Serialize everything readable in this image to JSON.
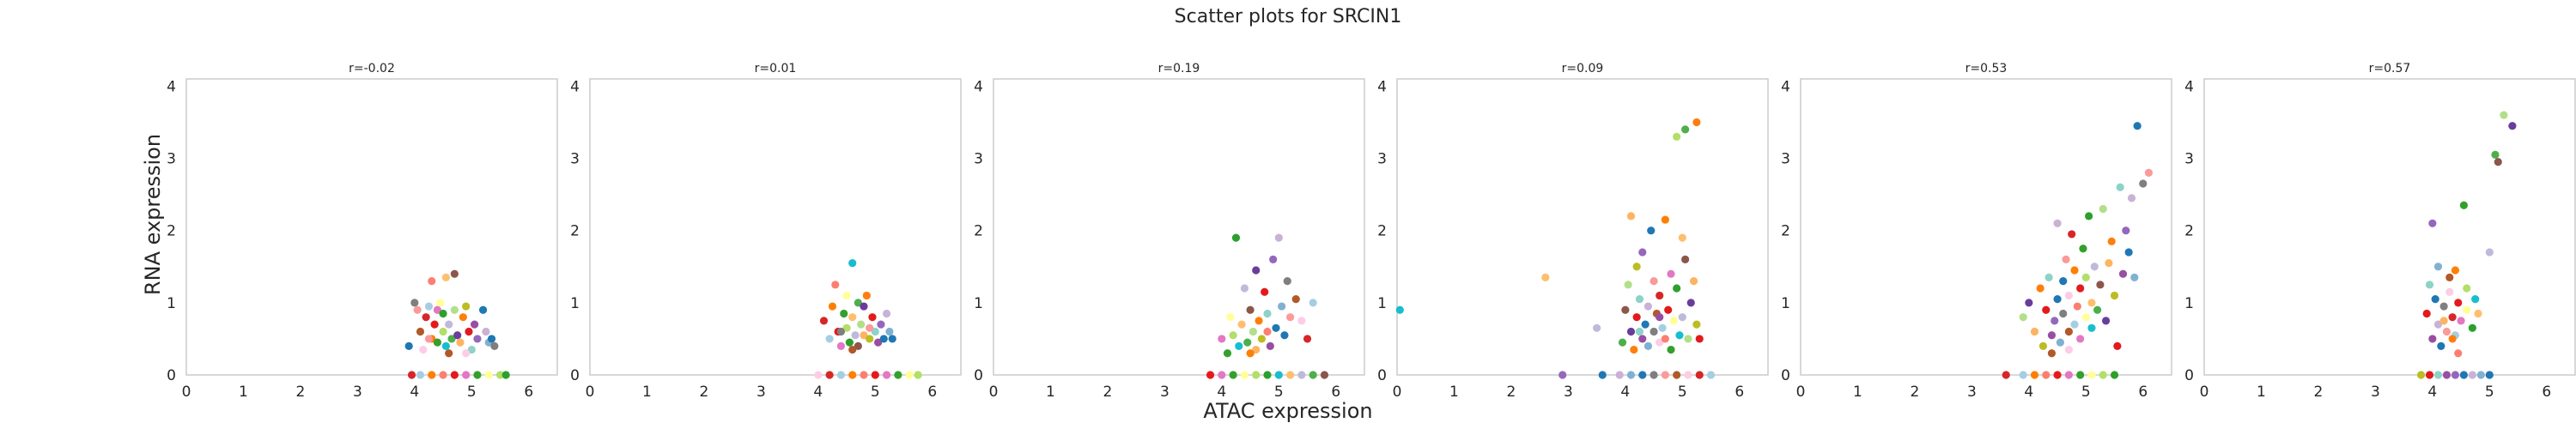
{
  "figure": {
    "title": "Scatter plots for SRCIN1",
    "xlabel": "ATAC expression",
    "ylabel": "RNA expression"
  },
  "palette": [
    "#1f77b4",
    "#ff7f0e",
    "#2ca02c",
    "#d62728",
    "#9467bd",
    "#8c564b",
    "#e377c2",
    "#7f7f7f",
    "#bcbd22",
    "#17becf",
    "#a6cee3",
    "#1f78b4",
    "#b2df8a",
    "#33a02c",
    "#fb9a99",
    "#e31a1c",
    "#fdbf6f",
    "#ff7f00",
    "#cab2d6",
    "#6a3d9a",
    "#ffff99",
    "#b15928",
    "#8dd3c7",
    "#bebada",
    "#fb8072",
    "#80b1d3",
    "#fdb462",
    "#b3de69",
    "#fccde5",
    "#984ea3",
    "#4daf4a",
    "#e41a1c"
  ],
  "chart_data": [
    {
      "type": "scatter",
      "title": "r=-0.02",
      "xlim": [
        0,
        6.5
      ],
      "ylim": [
        0,
        4.1
      ],
      "xticks": [
        0,
        1,
        2,
        3,
        4,
        5,
        6
      ],
      "yticks": [
        0,
        1,
        2,
        3,
        4
      ],
      "grid": false,
      "points": [
        [
          3.9,
          0.4
        ],
        [
          4.0,
          1.0
        ],
        [
          4.05,
          0.9
        ],
        [
          4.1,
          0.6
        ],
        [
          4.15,
          0.35
        ],
        [
          4.2,
          0.8
        ],
        [
          4.25,
          0.95
        ],
        [
          4.3,
          0.5
        ],
        [
          4.3,
          1.3
        ],
        [
          4.35,
          0.7
        ],
        [
          4.4,
          0.9
        ],
        [
          4.4,
          0.45
        ],
        [
          4.45,
          1.0
        ],
        [
          4.5,
          0.6
        ],
        [
          4.5,
          0.85
        ],
        [
          4.55,
          0.4
        ],
        [
          4.55,
          1.35
        ],
        [
          4.6,
          0.7
        ],
        [
          4.65,
          0.5
        ],
        [
          4.7,
          1.4
        ],
        [
          4.7,
          0.9
        ],
        [
          4.75,
          0.55
        ],
        [
          4.8,
          0.45
        ],
        [
          4.85,
          0.8
        ],
        [
          4.9,
          0.95
        ],
        [
          4.95,
          0.6
        ],
        [
          5.0,
          0.35
        ],
        [
          5.05,
          0.7
        ],
        [
          5.1,
          0.5
        ],
        [
          5.2,
          0.9
        ],
        [
          5.25,
          0.6
        ],
        [
          5.3,
          0.45
        ],
        [
          5.35,
          0.5
        ],
        [
          5.4,
          0.4
        ],
        [
          4.25,
          0.5
        ],
        [
          4.6,
          0.3
        ],
        [
          4.9,
          0.3
        ],
        [
          3.95,
          0
        ],
        [
          4.1,
          0
        ],
        [
          4.3,
          0
        ],
        [
          4.5,
          0
        ],
        [
          4.7,
          0
        ],
        [
          4.9,
          0
        ],
        [
          5.1,
          0
        ],
        [
          5.3,
          0
        ],
        [
          5.5,
          0
        ],
        [
          5.6,
          0
        ]
      ]
    },
    {
      "type": "scatter",
      "title": "r=0.01",
      "xlim": [
        0,
        6.5
      ],
      "ylim": [
        0,
        4.1
      ],
      "xticks": [
        0,
        1,
        2,
        3,
        4,
        5,
        6
      ],
      "yticks": [
        0,
        1,
        2,
        3,
        4
      ],
      "grid": false,
      "points": [
        [
          4.1,
          0.75
        ],
        [
          4.2,
          0.5
        ],
        [
          4.25,
          0.95
        ],
        [
          4.3,
          1.25
        ],
        [
          4.35,
          0.6
        ],
        [
          4.4,
          0.4
        ],
        [
          4.45,
          0.85
        ],
        [
          4.5,
          1.1
        ],
        [
          4.5,
          0.65
        ],
        [
          4.55,
          0.45
        ],
        [
          4.6,
          1.55
        ],
        [
          4.6,
          0.8
        ],
        [
          4.65,
          0.55
        ],
        [
          4.7,
          1.0
        ],
        [
          4.7,
          0.4
        ],
        [
          4.75,
          0.7
        ],
        [
          4.8,
          0.95
        ],
        [
          4.8,
          0.55
        ],
        [
          4.85,
          1.1
        ],
        [
          4.9,
          0.5
        ],
        [
          4.95,
          0.8
        ],
        [
          5.0,
          0.6
        ],
        [
          5.05,
          0.45
        ],
        [
          5.1,
          0.7
        ],
        [
          5.15,
          0.5
        ],
        [
          5.2,
          0.85
        ],
        [
          5.25,
          0.6
        ],
        [
          5.3,
          0.5
        ],
        [
          4.4,
          0.6
        ],
        [
          4.9,
          0.65
        ],
        [
          4.6,
          0.35
        ],
        [
          4.0,
          0
        ],
        [
          4.2,
          0
        ],
        [
          4.4,
          0
        ],
        [
          4.6,
          0
        ],
        [
          4.8,
          0
        ],
        [
          5.0,
          0
        ],
        [
          5.2,
          0
        ],
        [
          5.4,
          0
        ],
        [
          5.6,
          0
        ],
        [
          5.75,
          0
        ]
      ]
    },
    {
      "type": "scatter",
      "title": "r=0.19",
      "xlim": [
        0,
        6.5
      ],
      "ylim": [
        0,
        4.1
      ],
      "xticks": [
        0,
        1,
        2,
        3,
        4,
        5,
        6
      ],
      "yticks": [
        0,
        1,
        2,
        3,
        4
      ],
      "grid": false,
      "points": [
        [
          4.0,
          0.5
        ],
        [
          4.1,
          0.3
        ],
        [
          4.15,
          0.8
        ],
        [
          4.2,
          0.55
        ],
        [
          4.25,
          1.9
        ],
        [
          4.3,
          0.4
        ],
        [
          4.35,
          0.7
        ],
        [
          4.4,
          1.2
        ],
        [
          4.45,
          0.45
        ],
        [
          4.5,
          0.9
        ],
        [
          4.55,
          0.6
        ],
        [
          4.6,
          1.45
        ],
        [
          4.6,
          0.35
        ],
        [
          4.65,
          0.75
        ],
        [
          4.7,
          0.5
        ],
        [
          4.75,
          1.15
        ],
        [
          4.8,
          0.85
        ],
        [
          4.85,
          0.4
        ],
        [
          4.9,
          1.6
        ],
        [
          4.95,
          0.65
        ],
        [
          5.0,
          1.9
        ],
        [
          5.05,
          0.95
        ],
        [
          5.1,
          0.55
        ],
        [
          5.15,
          1.3
        ],
        [
          5.2,
          0.8
        ],
        [
          5.3,
          1.05
        ],
        [
          5.4,
          0.75
        ],
        [
          5.5,
          0.5
        ],
        [
          5.6,
          1.0
        ],
        [
          4.5,
          0.3
        ],
        [
          4.8,
          0.6
        ],
        [
          3.8,
          0
        ],
        [
          4.0,
          0
        ],
        [
          4.2,
          0
        ],
        [
          4.4,
          0
        ],
        [
          4.6,
          0
        ],
        [
          4.8,
          0
        ],
        [
          5.0,
          0
        ],
        [
          5.2,
          0
        ],
        [
          5.4,
          0
        ],
        [
          5.6,
          0
        ],
        [
          5.8,
          0
        ]
      ]
    },
    {
      "type": "scatter",
      "title": "r=0.09",
      "xlim": [
        0,
        6.5
      ],
      "ylim": [
        0,
        4.1
      ],
      "xticks": [
        0,
        1,
        2,
        3,
        4,
        5,
        6
      ],
      "yticks": [
        0,
        1,
        2,
        3,
        4
      ],
      "grid": false,
      "points": [
        [
          0.05,
          0.9
        ],
        [
          2.6,
          1.35
        ],
        [
          3.5,
          0.65
        ],
        [
          3.95,
          0.45
        ],
        [
          4.0,
          0.9
        ],
        [
          4.05,
          1.25
        ],
        [
          4.1,
          0.6
        ],
        [
          4.1,
          2.2
        ],
        [
          4.15,
          0.35
        ],
        [
          4.2,
          1.5
        ],
        [
          4.2,
          0.8
        ],
        [
          4.25,
          1.05
        ],
        [
          4.3,
          0.5
        ],
        [
          4.3,
          1.7
        ],
        [
          4.35,
          0.7
        ],
        [
          4.4,
          0.95
        ],
        [
          4.4,
          0.4
        ],
        [
          4.45,
          2.0
        ],
        [
          4.5,
          0.6
        ],
        [
          4.5,
          1.3
        ],
        [
          4.55,
          0.85
        ],
        [
          4.6,
          0.45
        ],
        [
          4.6,
          1.1
        ],
        [
          4.65,
          0.65
        ],
        [
          4.7,
          2.15
        ],
        [
          4.7,
          0.5
        ],
        [
          4.75,
          0.9
        ],
        [
          4.8,
          1.4
        ],
        [
          4.8,
          0.35
        ],
        [
          4.85,
          0.75
        ],
        [
          4.9,
          3.3
        ],
        [
          4.9,
          1.2
        ],
        [
          4.95,
          0.55
        ],
        [
          5.0,
          1.9
        ],
        [
          5.0,
          0.8
        ],
        [
          5.05,
          3.4
        ],
        [
          5.05,
          1.6
        ],
        [
          5.1,
          0.5
        ],
        [
          5.15,
          1.0
        ],
        [
          5.2,
          1.3
        ],
        [
          5.25,
          3.5
        ],
        [
          5.25,
          0.7
        ],
        [
          5.3,
          0.5
        ],
        [
          4.25,
          0.6
        ],
        [
          4.6,
          0.8
        ],
        [
          2.9,
          0
        ],
        [
          3.6,
          0
        ],
        [
          3.9,
          0
        ],
        [
          4.1,
          0
        ],
        [
          4.3,
          0
        ],
        [
          4.5,
          0
        ],
        [
          4.7,
          0
        ],
        [
          4.9,
          0
        ],
        [
          5.1,
          0
        ],
        [
          5.3,
          0
        ],
        [
          5.5,
          0
        ]
      ]
    },
    {
      "type": "scatter",
      "title": "r=0.53",
      "xlim": [
        0,
        6.5
      ],
      "ylim": [
        0,
        4.1
      ],
      "xticks": [
        0,
        1,
        2,
        3,
        4,
        5,
        6
      ],
      "yticks": [
        0,
        1,
        2,
        3,
        4
      ],
      "grid": false,
      "points": [
        [
          3.9,
          0.8
        ],
        [
          4.0,
          1.0
        ],
        [
          4.1,
          0.6
        ],
        [
          4.2,
          1.2
        ],
        [
          4.25,
          0.4
        ],
        [
          4.3,
          0.9
        ],
        [
          4.35,
          1.35
        ],
        [
          4.4,
          0.55
        ],
        [
          4.45,
          0.75
        ],
        [
          4.5,
          1.05
        ],
        [
          4.5,
          2.1
        ],
        [
          4.55,
          0.45
        ],
        [
          4.6,
          1.3
        ],
        [
          4.6,
          0.85
        ],
        [
          4.65,
          1.6
        ],
        [
          4.7,
          0.6
        ],
        [
          4.7,
          1.1
        ],
        [
          4.75,
          1.95
        ],
        [
          4.8,
          0.7
        ],
        [
          4.8,
          1.45
        ],
        [
          4.85,
          0.95
        ],
        [
          4.9,
          1.2
        ],
        [
          4.9,
          0.5
        ],
        [
          4.95,
          1.75
        ],
        [
          5.0,
          0.8
        ],
        [
          5.0,
          1.35
        ],
        [
          5.05,
          2.2
        ],
        [
          5.1,
          0.65
        ],
        [
          5.1,
          1.0
        ],
        [
          5.15,
          1.5
        ],
        [
          5.2,
          0.9
        ],
        [
          5.25,
          1.25
        ],
        [
          5.3,
          2.3
        ],
        [
          5.35,
          0.75
        ],
        [
          5.4,
          1.55
        ],
        [
          5.45,
          1.85
        ],
        [
          5.5,
          1.1
        ],
        [
          5.55,
          0.4
        ],
        [
          5.6,
          2.6
        ],
        [
          5.65,
          1.4
        ],
        [
          5.7,
          2.0
        ],
        [
          5.75,
          1.7
        ],
        [
          5.8,
          2.45
        ],
        [
          5.85,
          1.35
        ],
        [
          5.9,
          3.45
        ],
        [
          6.0,
          2.65
        ],
        [
          6.1,
          2.8
        ],
        [
          4.4,
          0.3
        ],
        [
          4.7,
          0.35
        ],
        [
          3.6,
          0
        ],
        [
          3.9,
          0
        ],
        [
          4.1,
          0
        ],
        [
          4.3,
          0
        ],
        [
          4.5,
          0
        ],
        [
          4.7,
          0
        ],
        [
          4.9,
          0
        ],
        [
          5.1,
          0
        ],
        [
          5.3,
          0
        ],
        [
          5.5,
          0
        ]
      ]
    },
    {
      "type": "scatter",
      "title": "r=0.57",
      "xlim": [
        0,
        6.5
      ],
      "ylim": [
        0,
        4.1
      ],
      "xticks": [
        0,
        1,
        2,
        3,
        4,
        5,
        6
      ],
      "yticks": [
        0,
        1,
        2,
        3,
        4
      ],
      "grid": false,
      "points": [
        [
          3.9,
          0.85
        ],
        [
          3.95,
          1.25
        ],
        [
          4.0,
          0.5
        ],
        [
          4.0,
          2.1
        ],
        [
          4.05,
          1.05
        ],
        [
          4.1,
          0.7
        ],
        [
          4.1,
          1.5
        ],
        [
          4.15,
          0.4
        ],
        [
          4.2,
          0.95
        ],
        [
          4.25,
          0.6
        ],
        [
          4.3,
          1.35
        ],
        [
          4.3,
          1.15
        ],
        [
          4.35,
          0.8
        ],
        [
          4.4,
          0.55
        ],
        [
          4.4,
          1.45
        ],
        [
          4.45,
          0.3
        ],
        [
          4.45,
          1.0
        ],
        [
          4.5,
          0.75
        ],
        [
          4.55,
          2.35
        ],
        [
          4.6,
          0.9
        ],
        [
          4.6,
          1.2
        ],
        [
          4.7,
          0.65
        ],
        [
          4.75,
          1.05
        ],
        [
          4.8,
          0.85
        ],
        [
          5.0,
          1.7
        ],
        [
          5.1,
          3.05
        ],
        [
          5.15,
          2.95
        ],
        [
          5.25,
          3.6
        ],
        [
          5.4,
          3.45
        ],
        [
          4.2,
          0.75
        ],
        [
          4.35,
          0.5
        ],
        [
          3.8,
          0
        ],
        [
          3.95,
          0
        ],
        [
          4.1,
          0
        ],
        [
          4.25,
          0
        ],
        [
          4.4,
          0
        ],
        [
          4.55,
          0
        ],
        [
          4.7,
          0
        ],
        [
          4.85,
          0
        ],
        [
          5.0,
          0
        ]
      ]
    }
  ]
}
